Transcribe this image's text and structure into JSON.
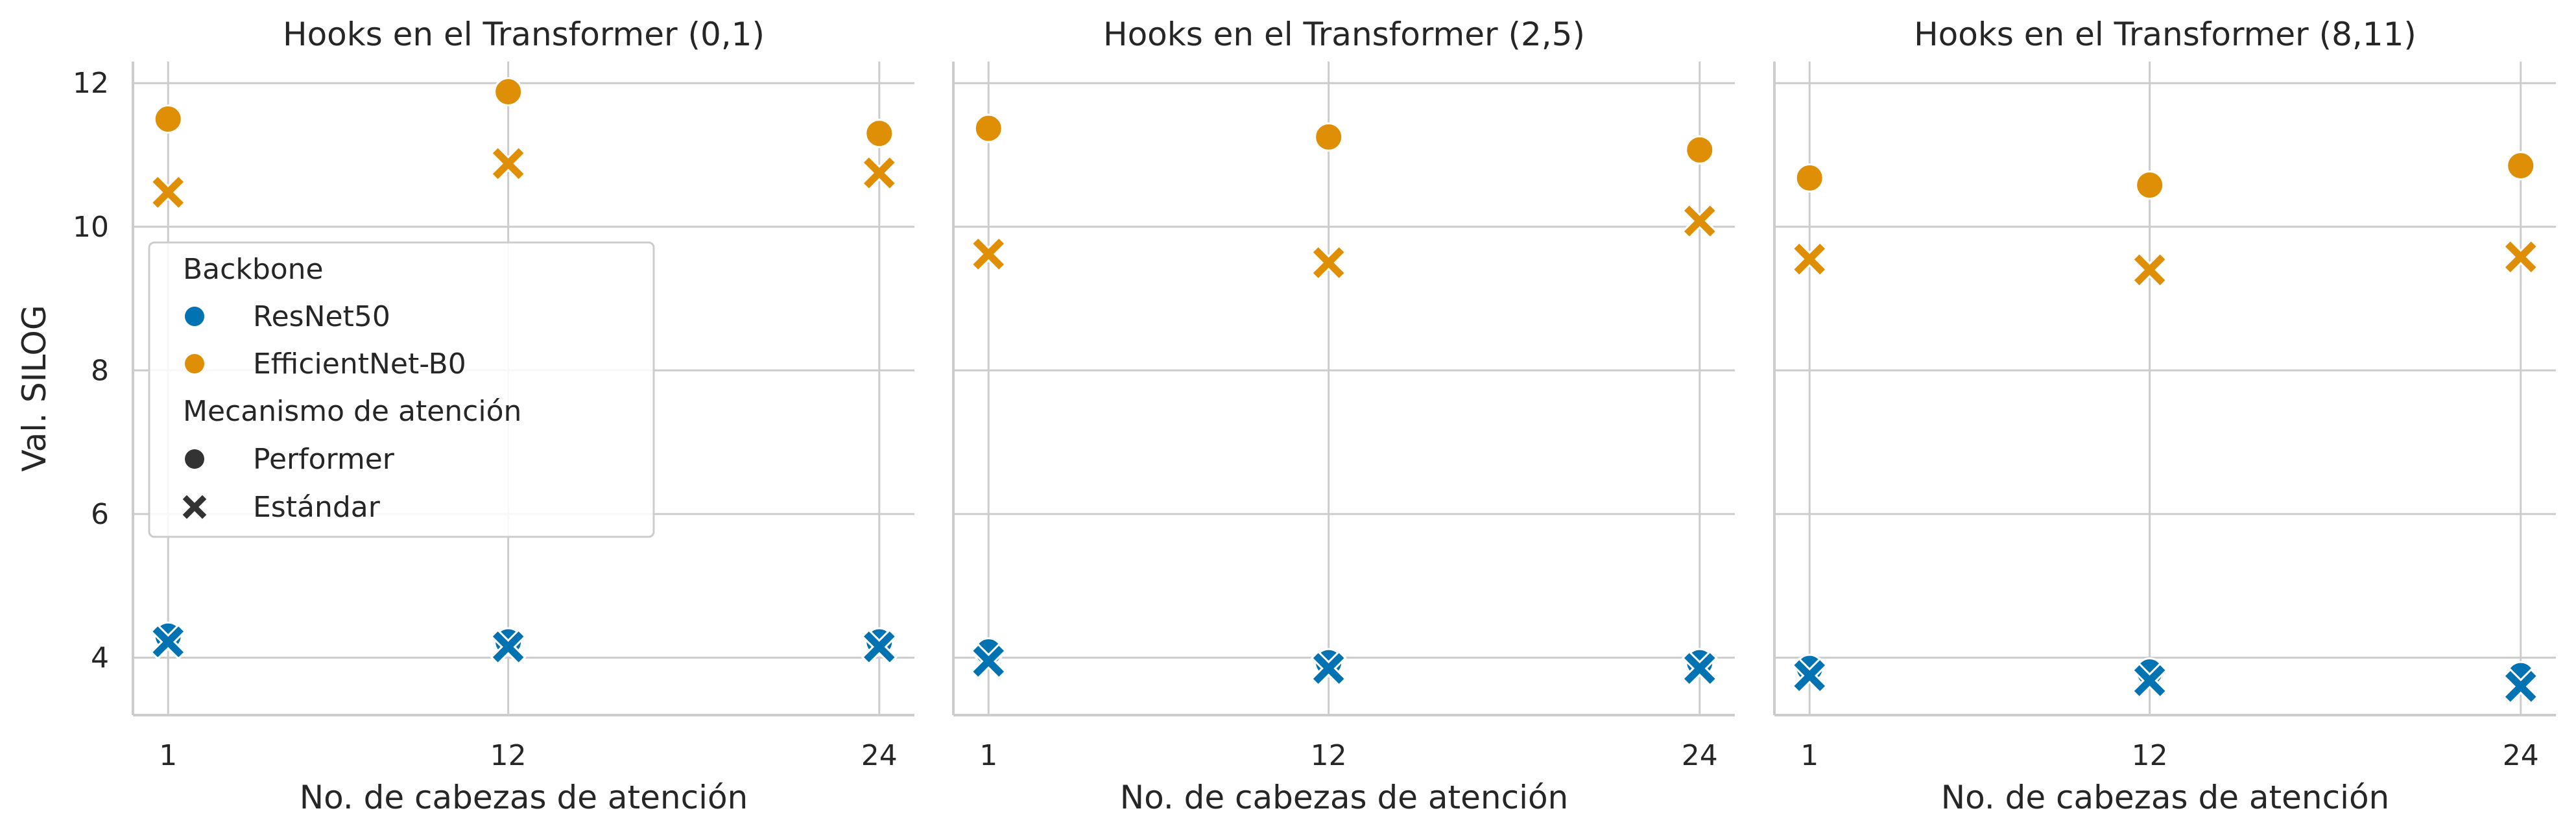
{
  "chart_data": [
    {
      "type": "scatter",
      "title": "Hooks en el Transformer (0,1)",
      "xlabel": "No. de cabezas de atención",
      "ylabel": "Val. SILOG",
      "xticks": [
        "1",
        "12",
        "24"
      ],
      "yticks": [
        "4",
        "6",
        "8",
        "10",
        "12"
      ],
      "ylim": [
        3.2,
        12.3
      ],
      "grid": true,
      "series": [
        {
          "backbone": "ResNet50",
          "mechanism": "Performer",
          "x": [
            1,
            12,
            24
          ],
          "y": [
            4.3,
            4.22,
            4.22
          ]
        },
        {
          "backbone": "ResNet50",
          "mechanism": "Estándar",
          "x": [
            1,
            12,
            24
          ],
          "y": [
            4.22,
            4.15,
            4.15
          ]
        },
        {
          "backbone": "EfficientNet-B0",
          "mechanism": "Performer",
          "x": [
            1,
            12,
            24
          ],
          "y": [
            11.5,
            11.88,
            11.3
          ]
        },
        {
          "backbone": "EfficientNet-B0",
          "mechanism": "Estándar",
          "x": [
            1,
            12,
            24
          ],
          "y": [
            10.48,
            10.88,
            10.75
          ]
        }
      ]
    },
    {
      "type": "scatter",
      "title": "Hooks en el Transformer (2,5)",
      "xlabel": "No. de cabezas de atención",
      "ylabel": "",
      "xticks": [
        "1",
        "12",
        "24"
      ],
      "ylim": [
        3.2,
        12.3
      ],
      "grid": true,
      "series": [
        {
          "backbone": "ResNet50",
          "mechanism": "Performer",
          "x": [
            1,
            12,
            24
          ],
          "y": [
            4.08,
            3.93,
            3.93
          ]
        },
        {
          "backbone": "ResNet50",
          "mechanism": "Estándar",
          "x": [
            1,
            12,
            24
          ],
          "y": [
            3.95,
            3.85,
            3.85
          ]
        },
        {
          "backbone": "EfficientNet-B0",
          "mechanism": "Performer",
          "x": [
            1,
            12,
            24
          ],
          "y": [
            11.37,
            11.25,
            11.07
          ]
        },
        {
          "backbone": "EfficientNet-B0",
          "mechanism": "Estándar",
          "x": [
            1,
            12,
            24
          ],
          "y": [
            9.62,
            9.5,
            10.08
          ]
        }
      ]
    },
    {
      "type": "scatter",
      "title": "Hooks en el Transformer (8,11)",
      "xlabel": "No. de cabezas de atención",
      "ylabel": "",
      "xticks": [
        "1",
        "12",
        "24"
      ],
      "ylim": [
        3.2,
        12.3
      ],
      "grid": true,
      "series": [
        {
          "backbone": "ResNet50",
          "mechanism": "Performer",
          "x": [
            1,
            12,
            24
          ],
          "y": [
            3.85,
            3.8,
            3.75
          ]
        },
        {
          "backbone": "ResNet50",
          "mechanism": "Estándar",
          "x": [
            1,
            12,
            24
          ],
          "y": [
            3.75,
            3.68,
            3.6
          ]
        },
        {
          "backbone": "EfficientNet-B0",
          "mechanism": "Performer",
          "x": [
            1,
            12,
            24
          ],
          "y": [
            10.68,
            10.58,
            10.85
          ]
        },
        {
          "backbone": "EfficientNet-B0",
          "mechanism": "Estándar",
          "x": [
            1,
            12,
            24
          ],
          "y": [
            9.55,
            9.4,
            9.58
          ]
        }
      ]
    }
  ],
  "legend": {
    "placement": "upper-left of first panel",
    "hue_title": "Backbone",
    "hue_items": [
      {
        "label": "ResNet50",
        "color": "#0173b2"
      },
      {
        "label": "EfficientNet-B0",
        "color": "#de8f05"
      }
    ],
    "style_title": "Mecanismo de atención",
    "style_items": [
      {
        "label": "Performer",
        "marker": "circle"
      },
      {
        "label": "Estándar",
        "marker": "x"
      }
    ],
    "marker_color": "#333333"
  },
  "colors": {
    "ResNet50": "#0173b2",
    "EfficientNet-B0": "#de8f05"
  }
}
